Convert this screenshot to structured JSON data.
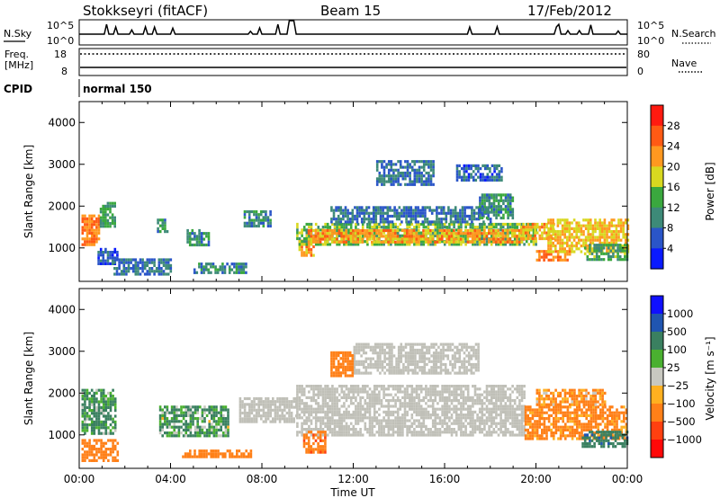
{
  "header": {
    "title": "Stokkseyri (fitACF)",
    "beam": "Beam 15",
    "date": "17/Feb/2012"
  },
  "noise_panel": {
    "left_label": "N.Sky",
    "right_label": "N.Search",
    "left_ticks": [
      "10^5",
      "10^0"
    ],
    "right_ticks": [
      "10^5",
      "10^0"
    ]
  },
  "freq_panel": {
    "left_label_1": "Freq.",
    "left_label_2": "[MHz]",
    "right_label": "Nave",
    "left_ticks": [
      "18",
      "8"
    ],
    "right_ticks": [
      "80",
      "0"
    ]
  },
  "cpid_panel": {
    "label": "CPID",
    "value": "normal 150"
  },
  "colors": {
    "background": "#ffffff",
    "axis": "#000000",
    "ground_scatter": "#c0c0b8"
  },
  "chart_data": [
    {
      "type": "heatmap",
      "name": "power",
      "ylabel": "Slant Range [km]",
      "ylim": [
        200,
        4500
      ],
      "yticks": [
        "1000",
        "2000",
        "3000",
        "4000"
      ],
      "colorbar_label": "Power [dB]",
      "colorbar_ticks": [
        "4",
        "8",
        "12",
        "16",
        "20",
        "24",
        "28"
      ],
      "colorbar_colors": [
        "#0a1aff",
        "#2a55c8",
        "#3d8a78",
        "#3aa83e",
        "#d8d820",
        "#ff9820",
        "#ff5a14",
        "#ff1a10"
      ],
      "scale_min": 0,
      "scale_max": 32,
      "regions": [
        {
          "t0": 0.1,
          "t1": 0.9,
          "r0": 1050,
          "r1": 1800,
          "v": 24
        },
        {
          "t0": 0.9,
          "t1": 1.6,
          "r0": 1500,
          "r1": 2100,
          "v": 12
        },
        {
          "t0": 0.8,
          "t1": 1.7,
          "r0": 600,
          "r1": 1000,
          "v": 6
        },
        {
          "t0": 1.5,
          "t1": 4.0,
          "r0": 400,
          "r1": 750,
          "v": 8
        },
        {
          "t0": 3.4,
          "t1": 3.9,
          "r0": 1400,
          "r1": 1700,
          "v": 10
        },
        {
          "t0": 4.7,
          "t1": 5.7,
          "r0": 1100,
          "r1": 1450,
          "v": 11
        },
        {
          "t0": 5.0,
          "t1": 7.3,
          "r0": 400,
          "r1": 650,
          "v": 10
        },
        {
          "t0": 7.2,
          "t1": 8.4,
          "r0": 1500,
          "r1": 1900,
          "v": 10
        },
        {
          "t0": 9.6,
          "t1": 10.3,
          "r0": 800,
          "r1": 1200,
          "v": 22
        },
        {
          "t0": 9.5,
          "t1": 20.0,
          "r0": 1050,
          "r1": 1600,
          "v": 14
        },
        {
          "t0": 10.0,
          "t1": 19.5,
          "r0": 1150,
          "r1": 1450,
          "v": 22
        },
        {
          "t0": 11.0,
          "t1": 18.0,
          "r0": 1600,
          "r1": 2000,
          "v": 8
        },
        {
          "t0": 13.0,
          "t1": 15.5,
          "r0": 2500,
          "r1": 3100,
          "v": 8
        },
        {
          "t0": 16.5,
          "t1": 18.5,
          "r0": 2600,
          "r1": 3000,
          "v": 7
        },
        {
          "t0": 17.5,
          "t1": 19.0,
          "r0": 1700,
          "r1": 2300,
          "v": 11
        },
        {
          "t0": 19.3,
          "t1": 20.8,
          "r0": 1200,
          "r1": 1600,
          "v": 21
        },
        {
          "t0": 20.0,
          "t1": 21.5,
          "r0": 700,
          "r1": 950,
          "v": 24
        },
        {
          "t0": 20.5,
          "t1": 24.0,
          "r0": 900,
          "r1": 1700,
          "v": 20
        },
        {
          "t0": 22.0,
          "t1": 24.0,
          "r0": 700,
          "r1": 1100,
          "v": 13
        }
      ]
    },
    {
      "type": "heatmap",
      "name": "velocity",
      "xlabel": "Time UT",
      "ylabel": "Slant Range [km]",
      "ylim": [
        200,
        4500
      ],
      "yticks": [
        "1000",
        "2000",
        "3000",
        "4000"
      ],
      "xticks": [
        "00:00",
        "04:00",
        "08:00",
        "12:00",
        "16:00",
        "20:00",
        "00:00"
      ],
      "colorbar_label": "Velocity [m s⁻¹]",
      "colorbar_ticks": [
        "1000",
        "500",
        "100",
        "25",
        "−25",
        "−100",
        "−500",
        "−1000"
      ],
      "colorbar_colors": [
        "#1010ff",
        "#2055b0",
        "#3a8060",
        "#4ab030",
        "#c8c8c0",
        "#ffb020",
        "#ff8018",
        "#ff4010",
        "#ff0808"
      ],
      "scale_min": -1200,
      "scale_max": 1200,
      "ground_value": 0,
      "regions": [
        {
          "t0": 0.1,
          "t1": 1.6,
          "r0": 1050,
          "r1": 2100,
          "v": 150
        },
        {
          "t0": 0.1,
          "t1": 1.7,
          "r0": 400,
          "r1": 900,
          "v": -300
        },
        {
          "t0": 3.5,
          "t1": 6.5,
          "r0": 1000,
          "r1": 1700,
          "v": 120
        },
        {
          "t0": 4.5,
          "t1": 7.5,
          "r0": 450,
          "r1": 650,
          "v": -250
        },
        {
          "t0": 7.0,
          "t1": 9.5,
          "r0": 1300,
          "r1": 1900,
          "v": 0,
          "ground": true
        },
        {
          "t0": 9.5,
          "t1": 19.5,
          "r0": 1000,
          "r1": 2200,
          "v": 0,
          "ground": true
        },
        {
          "t0": 12.0,
          "t1": 17.5,
          "r0": 2500,
          "r1": 3200,
          "v": 0,
          "ground": true
        },
        {
          "t0": 9.8,
          "t1": 10.8,
          "r0": 600,
          "r1": 1100,
          "v": -400
        },
        {
          "t0": 11.0,
          "t1": 12.0,
          "r0": 2400,
          "r1": 3000,
          "v": -300
        },
        {
          "t0": 19.5,
          "t1": 24.0,
          "r0": 900,
          "r1": 1700,
          "v": -200
        },
        {
          "t0": 22.0,
          "t1": 24.0,
          "r0": 700,
          "r1": 1100,
          "v": 400
        },
        {
          "t0": 20.0,
          "t1": 23.0,
          "r0": 1700,
          "r1": 2100,
          "v": -150
        }
      ]
    }
  ]
}
